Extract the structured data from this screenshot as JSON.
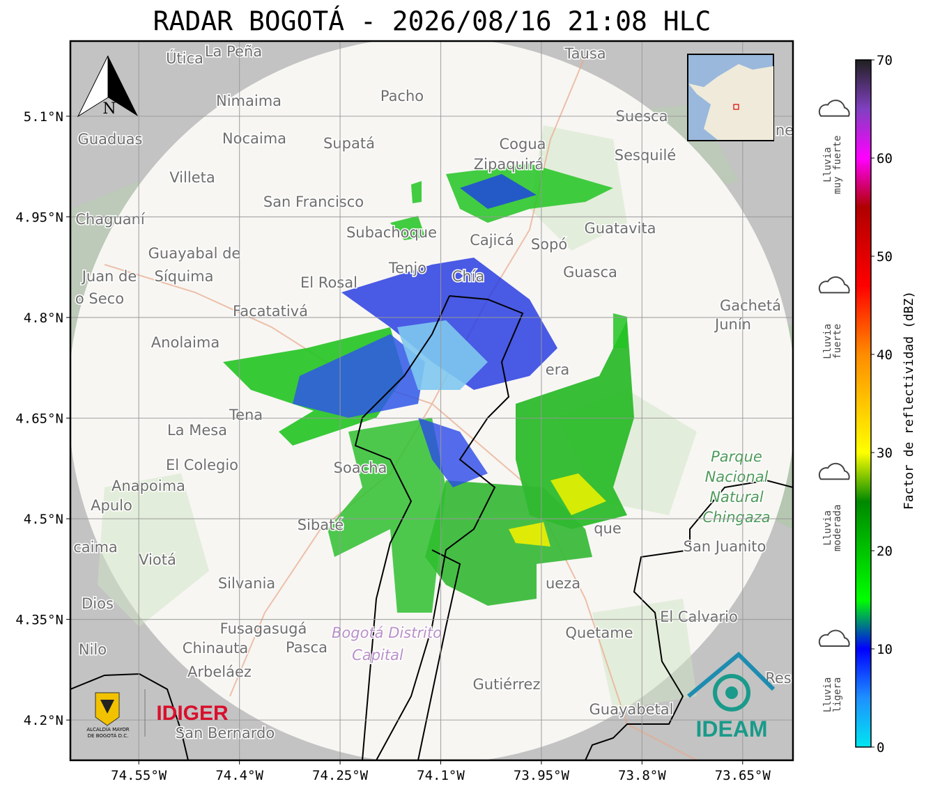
{
  "title": "RADAR BOGOTÁ - 2026/08/16 21:08 HLC",
  "map": {
    "lonlim": [
      -74.652,
      -73.575
    ],
    "latlim": [
      4.14,
      5.212
    ],
    "lon_ticks": [
      {
        "value": -74.55,
        "label": "74.55°W"
      },
      {
        "value": -74.4,
        "label": "74.4°W"
      },
      {
        "value": -74.25,
        "label": "74.25°W"
      },
      {
        "value": -74.1,
        "label": "74.1°W"
      },
      {
        "value": -73.95,
        "label": "73.95°W"
      },
      {
        "value": -73.8,
        "label": "73.8°W"
      },
      {
        "value": -73.65,
        "label": "73.65°W"
      }
    ],
    "lat_ticks": [
      {
        "value": 5.1,
        "label": "5.1°N"
      },
      {
        "value": 4.95,
        "label": "4.95°N"
      },
      {
        "value": 4.8,
        "label": "4.8°N"
      },
      {
        "value": 4.65,
        "label": "4.65°N"
      },
      {
        "value": 4.5,
        "label": "4.5°N"
      },
      {
        "value": 4.35,
        "label": "4.35°N"
      },
      {
        "value": 4.2,
        "label": "4.2°N"
      }
    ],
    "grid": true,
    "north": "N",
    "places": [
      "Útica",
      "La Peña",
      "Tausa",
      "Pacho",
      "Nimaima",
      "Guaduas",
      "Nocaima",
      "Supatá",
      "Cogua",
      "Suesca",
      "Sesquilé",
      "Zipaquirá",
      "Villeta",
      "San Francisco",
      "Chaguaní",
      "Subachoque",
      "Cajicá",
      "Sopó",
      "Guatavita",
      "Guayabal de",
      "Síquima",
      "Juan de",
      "o Seco",
      "El Rosal",
      "Tenjo",
      "Chía",
      "Guasca",
      "Facatativá",
      "Gachetá",
      "Junín",
      "Anolaima",
      "Tena",
      "La Mesa",
      "El Colegio",
      "Soacha",
      "Anapoima",
      "Apulo",
      "Sibaté",
      "que",
      "San Juanito",
      "caima",
      "Viotá",
      "Silvania",
      "ueza",
      "Dios",
      "El Calvario",
      "Fusagasugá",
      "Quetame",
      "Nilo",
      "Chinauta",
      "Pasca",
      "Arbeláez",
      "Gutiérrez",
      "Res",
      "Guayabetal",
      "San Bernardo",
      "ne",
      "era"
    ],
    "park": [
      "Parque",
      "Nacional",
      "Natural",
      "Chingaza"
    ],
    "capital": [
      "Bogotá Distrito",
      "Capital"
    ]
  },
  "colorbar": {
    "label": "Factor de reflectividad (dBZ)",
    "lim": [
      0,
      70
    ],
    "ticks": [
      0,
      10,
      20,
      30,
      40,
      50,
      60,
      70
    ],
    "colormap": [
      {
        "value": 0,
        "color": "#00e6f0"
      },
      {
        "value": 5,
        "color": "#1e90ff"
      },
      {
        "value": 10,
        "color": "#0000ff"
      },
      {
        "value": 15,
        "color": "#00ff00"
      },
      {
        "value": 25,
        "color": "#008800"
      },
      {
        "value": 30,
        "color": "#ffff00"
      },
      {
        "value": 40,
        "color": "#ff8c00"
      },
      {
        "value": 47,
        "color": "#ff0000"
      },
      {
        "value": 55,
        "color": "#b00000"
      },
      {
        "value": 60,
        "color": "#ff00ff"
      },
      {
        "value": 65,
        "color": "#8040c0"
      },
      {
        "value": 70,
        "color": "#202020"
      }
    ],
    "rain_levels": [
      {
        "value": 10,
        "lines": [
          "Lluvia",
          "ligera"
        ]
      },
      {
        "value": 27,
        "lines": [
          "Lluvia",
          "moderada"
        ]
      },
      {
        "value": 46,
        "lines": [
          "Lluvia",
          "fuerte"
        ]
      },
      {
        "value": 64,
        "lines": [
          "Lluvia",
          "muy fuerte"
        ]
      }
    ]
  },
  "logos": {
    "alcaldia": [
      "ALCALDÍA MAYOR",
      "DE BOGOTÁ D.C."
    ],
    "idiger": "IDIGER",
    "ideam": "IDEAM"
  }
}
